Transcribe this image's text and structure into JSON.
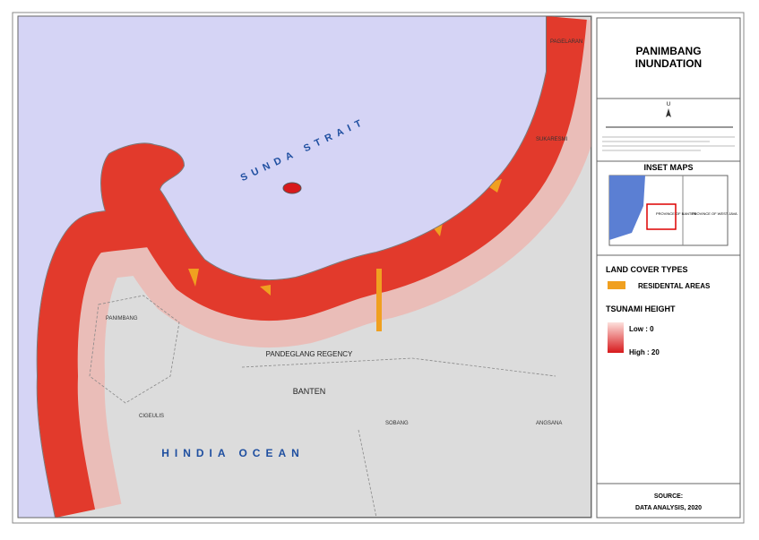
{
  "title": "PANIMBANG INUNDATION",
  "map_labels": {
    "sea_north": "SUNDA STRAIT",
    "sea_south": "HINDIA OCEAN",
    "panimbang": "PANIMBANG",
    "regency": "PANDEGLANG REGENCY",
    "province": "BANTEN",
    "cigeulis": "CIGEULIS",
    "sobang": "SOBANG",
    "angsana": "ANGSANA",
    "sukaresmi": "SUKARESMI",
    "pagelaran": "PAGELARAN"
  },
  "north_label": "U",
  "inset": {
    "title": "INSET MAPS",
    "label_banten": "PROVINCE OF BANTEN",
    "label_west_java": "PROVINCE OF WEST JAVA"
  },
  "legend": {
    "land_cover_title": "LAND COVER TYPES",
    "residential": "RESIDENTAL AREAS",
    "tsunami_title": "TSUNAMI HEIGHT",
    "low": "Low : 0",
    "high": "High : 20"
  },
  "source": {
    "heading": "SOURCE:",
    "text": "DATA ANALYSIS, 2020"
  }
}
